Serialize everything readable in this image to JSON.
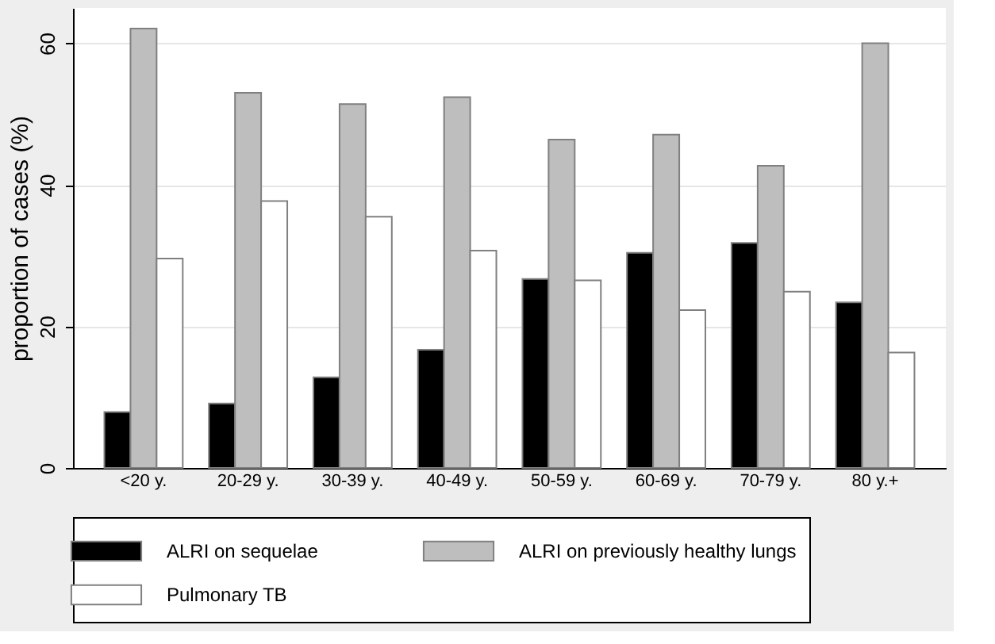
{
  "chart_data": {
    "type": "bar",
    "ylabel": "proportion of cases (%)",
    "categories": [
      "<20 y.",
      "20-29 y.",
      "30-39 y.",
      "40-49 y.",
      "50-59 y.",
      "60-69 y.",
      "70-79 y.",
      "80 y.+"
    ],
    "series": [
      {
        "name": "ALRI on  sequelae",
        "color": "#000000",
        "values": [
          7.9,
          9.1,
          12.8,
          16.7,
          26.7,
          30.4,
          31.8,
          23.4
        ]
      },
      {
        "name": "ALRI on previously healthy lungs",
        "color": "#bebebe",
        "values": [
          62.1,
          53.0,
          51.4,
          52.4,
          46.4,
          47.1,
          42.7,
          60.0
        ]
      },
      {
        "name": "Pulmonary TB",
        "color": "#ffffff",
        "values": [
          29.6,
          37.7,
          35.5,
          30.7,
          26.5,
          22.3,
          24.9,
          16.3
        ]
      }
    ],
    "ylim": [
      0,
      65
    ],
    "yticks": [
      0,
      20,
      40,
      60
    ],
    "grid": "y",
    "legend": "bottom"
  }
}
